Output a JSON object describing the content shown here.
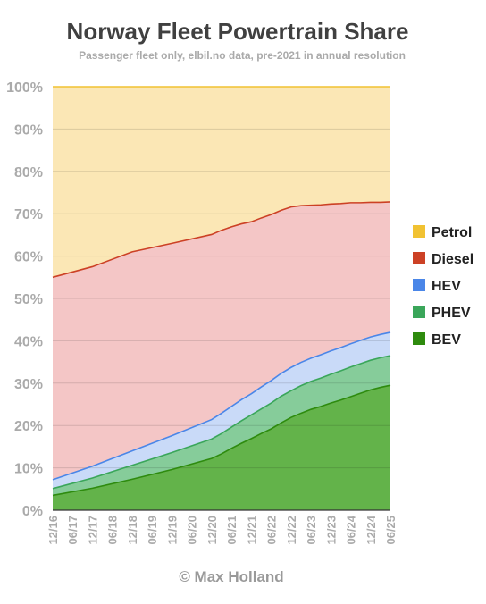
{
  "chart_data": {
    "type": "area",
    "stacked": true,
    "title": "Norway Fleet Powertrain Share",
    "subtitle": "Passenger fleet only, elbil.no data, pre-2021 in annual resolution",
    "credit": "© Max Holland",
    "xlabel": "",
    "ylabel": "",
    "ylim": [
      0,
      100
    ],
    "yticks": [
      "0%",
      "10%",
      "20%",
      "30%",
      "40%",
      "50%",
      "60%",
      "70%",
      "80%",
      "90%",
      "100%"
    ],
    "xticks": [
      "12/16",
      "06/17",
      "12/17",
      "06/18",
      "12/18",
      "06/19",
      "12/19",
      "06/20",
      "12/20",
      "06/21",
      "12/21",
      "06/22",
      "12/22",
      "06/23",
      "12/23",
      "06/24",
      "12/24",
      "06/25"
    ],
    "legend_position": "right",
    "grid": "horizontal",
    "x": [
      "12/16",
      "12/17",
      "12/18",
      "12/19",
      "12/20",
      "03/21",
      "06/21",
      "09/21",
      "12/21",
      "03/22",
      "06/22",
      "09/22",
      "12/22",
      "03/23",
      "06/23",
      "09/23",
      "12/23",
      "03/24",
      "06/24",
      "09/24",
      "12/24",
      "03/25",
      "06/25"
    ],
    "series": [
      {
        "name": "BEV",
        "color": "#2e8b0e",
        "fill": "#63b34a",
        "values": [
          3.5,
          5.2,
          7.3,
          9.6,
          12.2,
          13.3,
          14.6,
          15.8,
          16.9,
          18.1,
          19.2,
          20.6,
          21.9,
          22.9,
          23.8,
          24.5,
          25.3,
          26.0,
          26.8,
          27.6,
          28.4,
          29.0,
          29.5
        ]
      },
      {
        "name": "PHEV",
        "color": "#3aa65a",
        "fill": "#86cc9a",
        "values": [
          1.6,
          2.4,
          3.3,
          4.0,
          4.6,
          4.8,
          5.0,
          5.3,
          5.6,
          5.8,
          6.1,
          6.3,
          6.3,
          6.5,
          6.6,
          6.7,
          6.8,
          6.9,
          7.0,
          7.0,
          7.0,
          7.0,
          7.0
        ]
      },
      {
        "name": "HEV",
        "color": "#4a86e8",
        "fill": "#c9daf8",
        "values": [
          2.1,
          2.8,
          3.4,
          4.0,
          4.6,
          4.8,
          4.9,
          5.0,
          5.0,
          5.2,
          5.3,
          5.4,
          5.5,
          5.5,
          5.5,
          5.5,
          5.5,
          5.5,
          5.5,
          5.5,
          5.5,
          5.5,
          5.5
        ]
      },
      {
        "name": "Diesel",
        "color": "#cc4125",
        "fill": "#f4c6c6",
        "values": [
          47.8,
          47.1,
          47.0,
          45.4,
          43.7,
          43.2,
          42.4,
          41.5,
          40.6,
          39.9,
          39.2,
          38.5,
          37.9,
          37.0,
          36.1,
          35.4,
          34.7,
          34.0,
          33.3,
          32.5,
          31.8,
          31.2,
          30.8
        ]
      },
      {
        "name": "Petrol",
        "color": "#f1c232",
        "fill": "#fbe7b5",
        "values": [
          45.0,
          42.5,
          39.0,
          37.0,
          34.9,
          33.9,
          33.1,
          32.4,
          31.9,
          31.0,
          30.2,
          29.2,
          28.4,
          28.1,
          28.0,
          27.9,
          27.7,
          27.6,
          27.4,
          27.4,
          27.3,
          27.3,
          27.2
        ]
      }
    ]
  }
}
